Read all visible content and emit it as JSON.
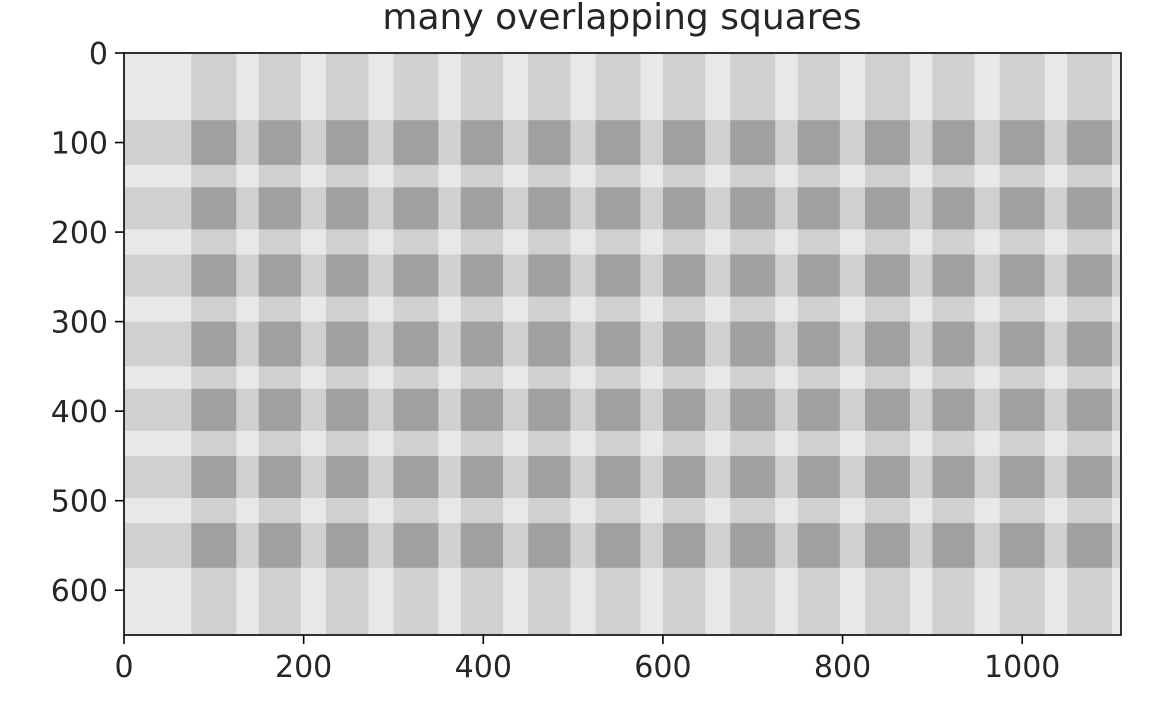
{
  "chart_data": {
    "type": "heatmap",
    "title": "many overlapping squares",
    "xlabel": "",
    "ylabel": "",
    "xlim": [
      0,
      1110
    ],
    "ylim": [
      650,
      0
    ],
    "x_ticks": [
      0,
      200,
      400,
      600,
      800,
      1000
    ],
    "y_ticks": [
      0,
      100,
      200,
      300,
      400,
      500,
      600
    ],
    "grid": false,
    "colors": {
      "background": "#e8e8e8",
      "single_band": "#d0d0d0",
      "overlap": "#a0a0a0",
      "axis": "#000000"
    },
    "column_bands": [
      [
        75,
        125
      ],
      [
        150,
        197
      ],
      [
        225,
        272
      ],
      [
        300,
        350
      ],
      [
        375,
        422
      ],
      [
        450,
        497
      ],
      [
        525,
        575
      ],
      [
        600,
        647
      ],
      [
        675,
        725
      ],
      [
        750,
        797
      ],
      [
        825,
        875
      ],
      [
        900,
        947
      ],
      [
        975,
        1025
      ],
      [
        1050,
        1100
      ]
    ],
    "row_bands": [
      [
        75,
        125
      ],
      [
        150,
        197
      ],
      [
        225,
        272
      ],
      [
        300,
        350
      ],
      [
        375,
        422
      ],
      [
        450,
        497
      ],
      [
        525,
        575
      ]
    ]
  }
}
